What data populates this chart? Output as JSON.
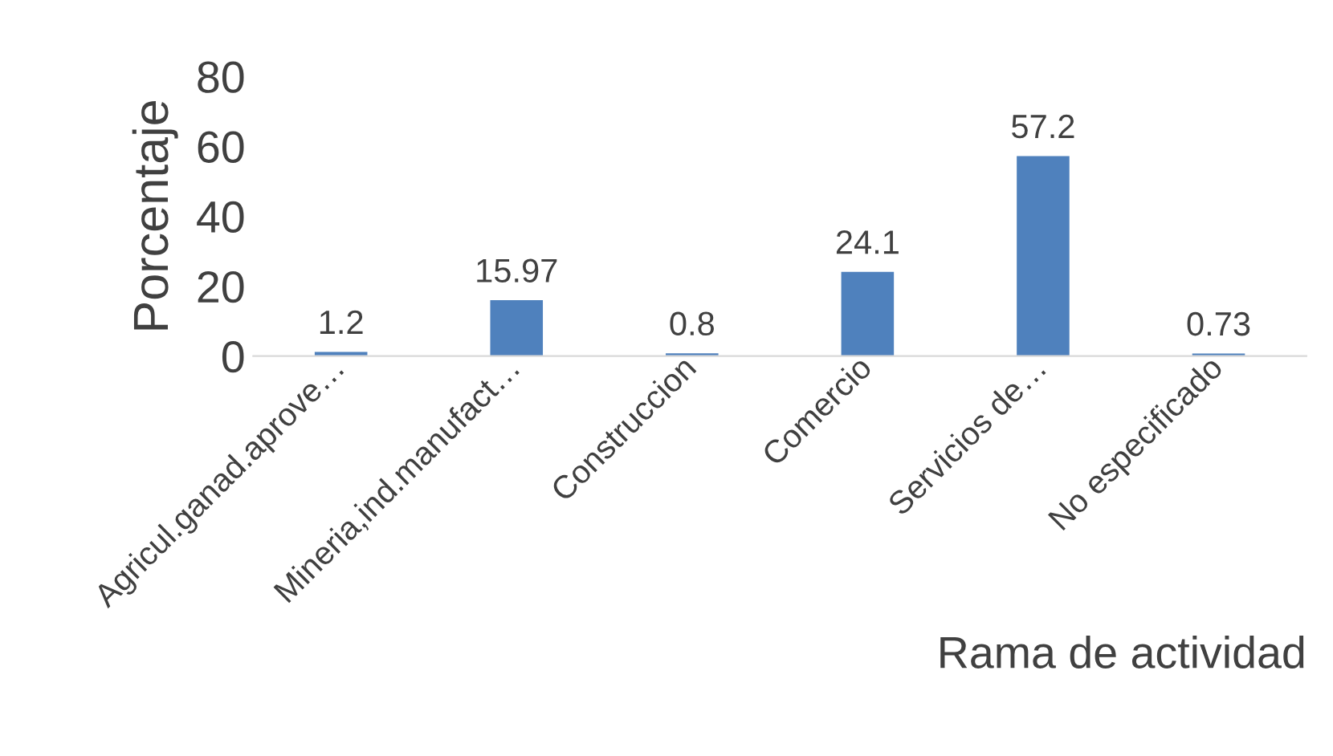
{
  "chart_data": {
    "type": "bar",
    "xlabel": "Rama de actividad",
    "ylabel": "Porcentaje",
    "categories": [
      "Agricul.ganad.aprove…",
      "Mineria,ind.manufact…",
      "Construccion",
      "Comercio",
      "Servicios de…",
      "No especificado"
    ],
    "values": [
      1.2,
      15.97,
      0.8,
      24.1,
      57.2,
      0.73
    ],
    "color": "#4f81bd",
    "data_labels": true,
    "ylim": [
      0,
      80
    ],
    "yticks": [
      0,
      20,
      40,
      60,
      80
    ],
    "grid": false
  }
}
